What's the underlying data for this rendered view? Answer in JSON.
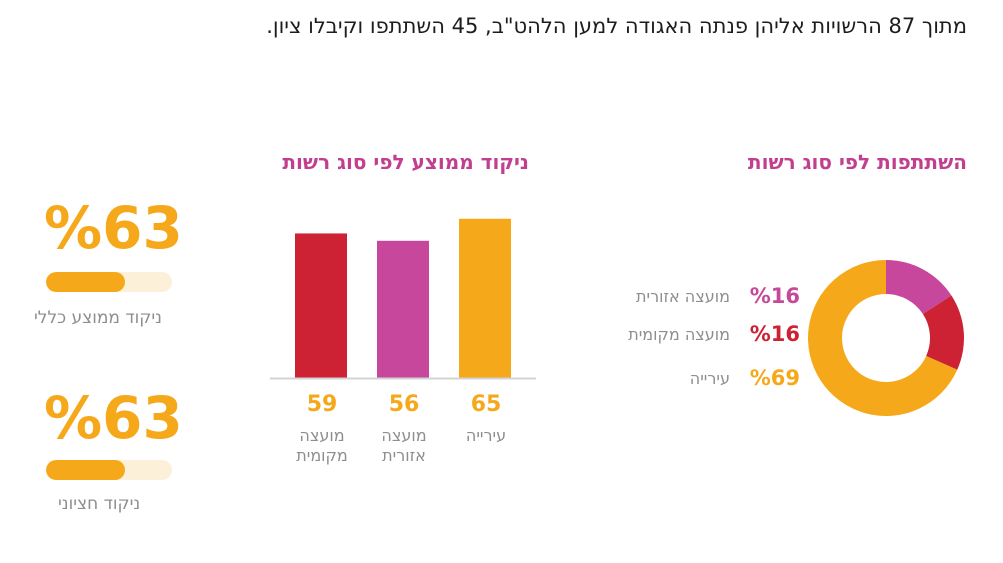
{
  "headline": "מתוך 87 הרשויות אליהן פנתה האגודה למען הלהט\"ב, 45 השתתפו וקיבלו ציון.",
  "colors": {
    "red": "#cc2233",
    "magenta": "#c6479b",
    "orange": "#f5a91a",
    "gray": "#8e8e8e",
    "track": "#fdf0d8"
  },
  "chart_data": [
    {
      "type": "pie",
      "title": "השתתפות לפי סוג רשות",
      "slices": [
        {
          "label": "מועצה אזורית",
          "value": 16,
          "display": "%16",
          "color": "#c6479b"
        },
        {
          "label": "מועצה מקומית",
          "value": 16,
          "display": "%16",
          "color": "#cc2233"
        },
        {
          "label": "עירייה",
          "value": 69,
          "display": "%69",
          "color": "#f5a91a"
        }
      ]
    },
    {
      "type": "bar",
      "title": "ניקוד ממוצע לפי סוג רשות",
      "categories": [
        "מועצה מקומית",
        "מועצה אזורית",
        "עירייה"
      ],
      "category_lines": [
        [
          "מועצה",
          "מקומית"
        ],
        [
          "מועצה",
          "אזורית"
        ],
        [
          "עירייה"
        ]
      ],
      "values": [
        59,
        56,
        65
      ],
      "colors": [
        "#cc2233",
        "#c6479b",
        "#f5a91a"
      ]
    }
  ],
  "stats": [
    {
      "display": "%63",
      "value": 63,
      "label": "ניקוד ממוצע כללי"
    },
    {
      "display": "%63",
      "value": 63,
      "label": "ניקוד חציוני"
    }
  ]
}
